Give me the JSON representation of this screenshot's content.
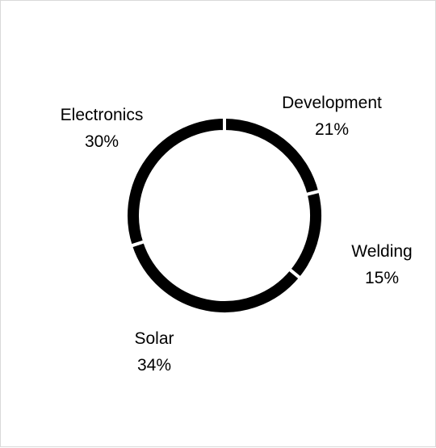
{
  "chart_data": {
    "type": "pie",
    "variant": "donut",
    "categories": [
      "Development",
      "Welding",
      "Solar",
      "Electronics"
    ],
    "values": [
      21,
      15,
      34,
      30
    ],
    "data_labels": [
      {
        "name": "Development",
        "pct": "21%"
      },
      {
        "name": "Welding",
        "pct": "15%"
      },
      {
        "name": "Solar",
        "pct": "34%"
      },
      {
        "name": "Electronics",
        "pct": "30%"
      }
    ],
    "start_angle": "12 o'clock",
    "direction": "clockwise",
    "legend": "none",
    "colors": {
      "slice": "#000000",
      "separator": "#ffffff",
      "border": "#d9d9d9"
    }
  }
}
